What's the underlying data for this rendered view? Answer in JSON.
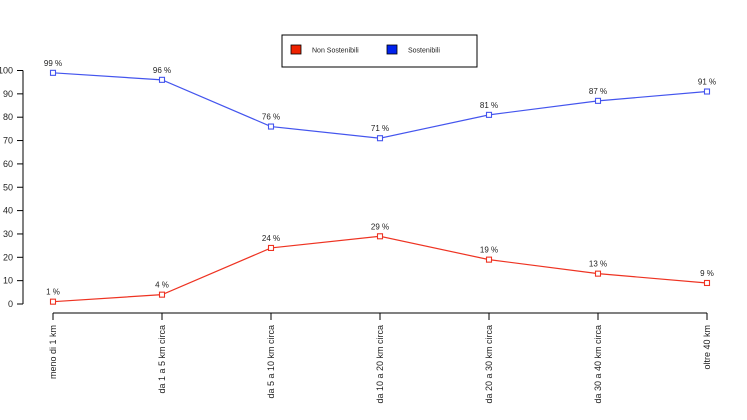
{
  "chart_data": {
    "type": "line",
    "categories": [
      "meno di 1 km",
      "da 1 a 5 km circa",
      "da 5 a 10 km circa",
      "da 10 a 20 km circa",
      "da 20 a 30 km circa",
      "da 30 a 40 km circa",
      "oltre 40 km"
    ],
    "series": [
      {
        "name": "Non Sostenibili",
        "color": "#ee3322",
        "values": [
          1,
          4,
          24,
          29,
          19,
          13,
          9
        ],
        "labels": [
          "1 %",
          "4 %",
          "24 %",
          "29 %",
          "19 %",
          "13 %",
          "9 %"
        ]
      },
      {
        "name": "Sostenibili",
        "color": "#4455ee",
        "values": [
          99,
          96,
          76,
          71,
          81,
          87,
          91
        ],
        "labels": [
          "99 %",
          "96 %",
          "76 %",
          "71 %",
          "81 %",
          "87 %",
          "91 %"
        ]
      }
    ],
    "ylim": [
      0,
      100
    ],
    "yticks": [
      0,
      10,
      20,
      30,
      40,
      50,
      60,
      70,
      80,
      90,
      100
    ],
    "legend": {
      "placement": "top-center",
      "swatch_colors": [
        "#ee2200",
        "#0022ee"
      ]
    },
    "grid": false
  }
}
